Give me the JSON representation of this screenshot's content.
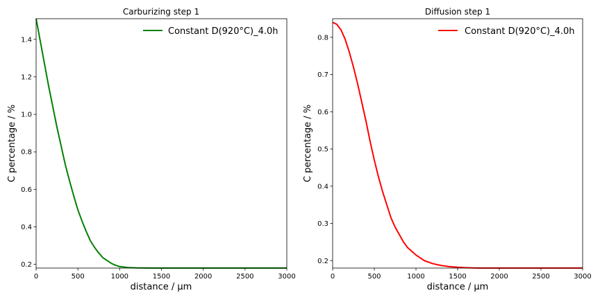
{
  "chart_data": [
    {
      "type": "line",
      "title": "Carburizing step 1",
      "xlabel": "distance / μm",
      "ylabel": "C percentage / %",
      "xlim": [
        0,
        3000
      ],
      "ylim": [
        0.18,
        1.51
      ],
      "xticks": [
        0,
        500,
        1000,
        1500,
        2000,
        2500,
        3000
      ],
      "yticks": [
        0.2,
        0.4,
        0.6,
        0.8,
        1.0,
        1.2,
        1.4
      ],
      "ytick_labels": [
        "0.2",
        "0.4",
        "0.6",
        "0.8",
        "1.0",
        "1.2",
        "1.4"
      ],
      "legend_position": "top-right",
      "grid": false,
      "series": [
        {
          "name": "Constant D(920°C)_4.0h",
          "color": "#008000",
          "x": [
            0,
            50,
            100,
            150,
            200,
            250,
            300,
            350,
            400,
            450,
            500,
            550,
            600,
            650,
            700,
            750,
            800,
            850,
            900,
            950,
            1000,
            1100,
            1200,
            1300,
            1400,
            1500,
            1750,
            2000,
            2500,
            3000
          ],
          "y": [
            1.51,
            1.39,
            1.27,
            1.15,
            1.04,
            0.93,
            0.83,
            0.73,
            0.645,
            0.565,
            0.49,
            0.43,
            0.375,
            0.325,
            0.29,
            0.26,
            0.235,
            0.22,
            0.205,
            0.195,
            0.188,
            0.183,
            0.181,
            0.1805,
            0.18,
            0.18,
            0.18,
            0.18,
            0.18,
            0.18
          ]
        }
      ]
    },
    {
      "type": "line",
      "title": "Diffusion step 1",
      "xlabel": "distance / μm",
      "ylabel": "C percentage / %",
      "xlim": [
        0,
        3000
      ],
      "ylim": [
        0.18,
        0.85
      ],
      "xticks": [
        0,
        500,
        1000,
        1500,
        2000,
        2500,
        3000
      ],
      "yticks": [
        0.2,
        0.3,
        0.4,
        0.5,
        0.6,
        0.7,
        0.8
      ],
      "ytick_labels": [
        "0.2",
        "0.3",
        "0.4",
        "0.5",
        "0.6",
        "0.7",
        "0.8"
      ],
      "legend_position": "top-right",
      "grid": false,
      "series": [
        {
          "name": "Constant D(920°C)_4.0h",
          "color": "#ff0000",
          "x": [
            0,
            50,
            100,
            150,
            200,
            250,
            300,
            350,
            400,
            450,
            500,
            550,
            600,
            650,
            700,
            750,
            800,
            850,
            900,
            950,
            1000,
            1100,
            1200,
            1300,
            1400,
            1500,
            1600,
            1750,
            2000,
            2500,
            3000
          ],
          "y": [
            0.84,
            0.835,
            0.82,
            0.795,
            0.76,
            0.72,
            0.675,
            0.625,
            0.575,
            0.52,
            0.47,
            0.425,
            0.385,
            0.35,
            0.315,
            0.29,
            0.27,
            0.25,
            0.235,
            0.225,
            0.215,
            0.2,
            0.192,
            0.187,
            0.184,
            0.182,
            0.181,
            0.18,
            0.18,
            0.18,
            0.18
          ]
        }
      ]
    }
  ]
}
